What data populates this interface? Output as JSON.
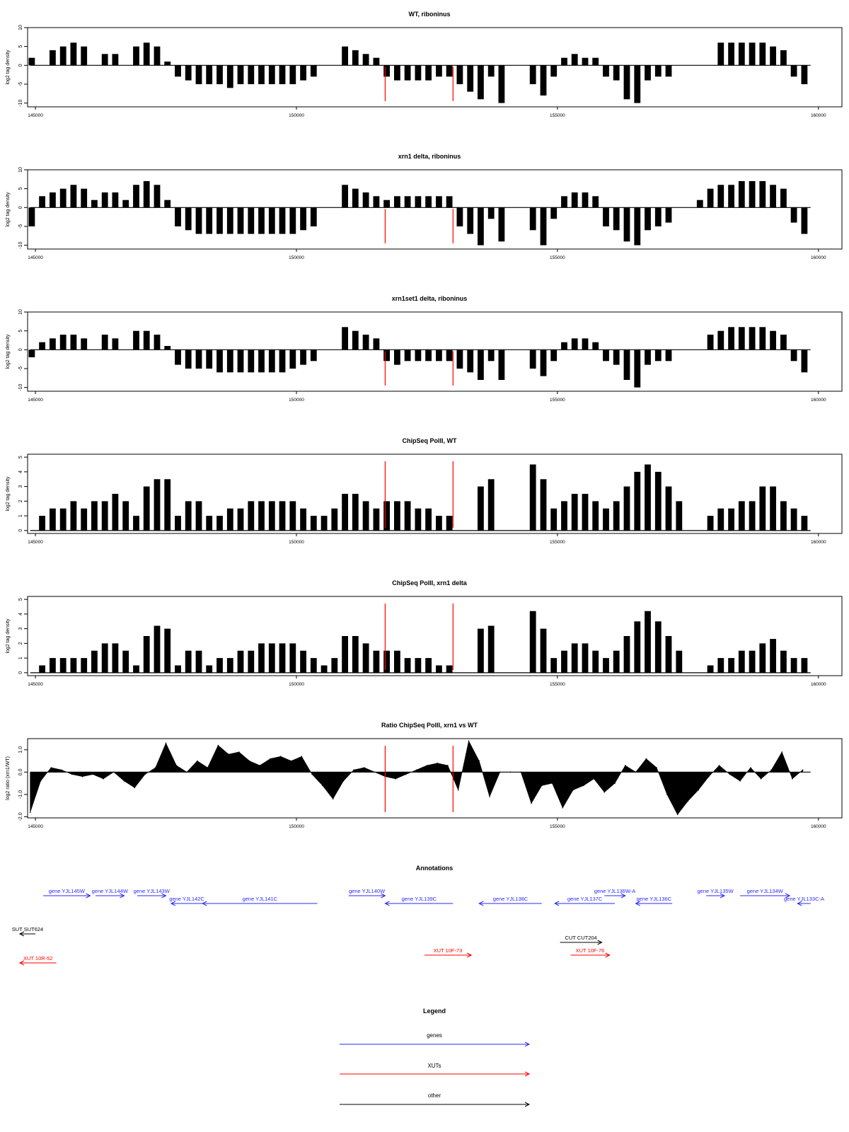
{
  "colors": {
    "gene": "#2a2aff",
    "xut": "#ff0000",
    "other": "#000000",
    "marker": "#ff0000",
    "bars": "#000000"
  },
  "x_axis": {
    "ticks": [
      145000,
      150000,
      155000,
      160000
    ],
    "tick_labels": [
      "145000",
      "150000",
      "155000",
      "160000"
    ],
    "range": [
      144850,
      160450
    ]
  },
  "markers": [
    151700,
    153000
  ],
  "panels": [
    {
      "title": "WT, riboninus",
      "ylabel": "log2 tag density",
      "yticks": [
        -10,
        -5,
        0,
        5,
        10
      ],
      "ytick_labels": [
        "-10",
        "-5",
        "0",
        "5",
        "10"
      ],
      "ylim": [
        -11,
        10
      ]
    },
    {
      "title": "xrn1 delta, riboninus",
      "ylabel": "log2 tag density",
      "yticks": [
        -10,
        -5,
        0,
        5,
        10
      ],
      "ytick_labels": [
        "-10",
        "-5",
        "0",
        "5",
        "10"
      ],
      "ylim": [
        -11,
        10
      ]
    },
    {
      "title": "xrn1set1 delta, riboninus",
      "ylabel": "log2 tag density",
      "yticks": [
        -10,
        -5,
        0,
        5,
        10
      ],
      "ytick_labels": [
        "-10",
        "-5",
        "0",
        "5",
        "10"
      ],
      "ylim": [
        -11,
        10
      ]
    },
    {
      "title": "ChipSeq PolII, WT",
      "ylabel": "log2 tag density",
      "yticks": [
        0,
        1,
        2,
        3,
        4,
        5
      ],
      "ytick_labels": [
        "0",
        "1",
        "2",
        "3",
        "4",
        "5"
      ],
      "ylim": [
        -0.2,
        5.2
      ]
    },
    {
      "title": "ChipSeq PolII, xrn1 delta",
      "ylabel": "log2 tag density",
      "yticks": [
        0,
        1,
        2,
        3,
        4,
        5
      ],
      "ytick_labels": [
        "0",
        "1",
        "2",
        "3",
        "4",
        "5"
      ],
      "ylim": [
        -0.2,
        5.2
      ]
    },
    {
      "title": "Ratio ChipSeq PolII, xrn1 vs WT",
      "ylabel": "log2 ratio (xrn1/WT)",
      "yticks": [
        -2.0,
        -1.0,
        0.0,
        1.0
      ],
      "ytick_labels": [
        "-2.0",
        "-1.0",
        "0.0",
        "1.0"
      ],
      "ylim": [
        -2.05,
        1.5
      ]
    }
  ],
  "annotations": {
    "title": "Annotations",
    "genes": [
      {
        "label": "gene YJL145W",
        "start": 145150,
        "end": 146050,
        "dir": "right"
      },
      {
        "label": "gene YJL144W",
        "start": 146150,
        "end": 146700,
        "dir": "right"
      },
      {
        "label": "gene YJL143W",
        "start": 146950,
        "end": 147500,
        "dir": "right"
      },
      {
        "label": "gene YJL142C",
        "start": 147600,
        "end": 148200,
        "dir": "left"
      },
      {
        "label": "gene YJL141C",
        "start": 148200,
        "end": 150400,
        "dir": "left"
      },
      {
        "label": "gene YJL140W",
        "start": 151000,
        "end": 151700,
        "dir": "right"
      },
      {
        "label": "gene YJL139C",
        "start": 151700,
        "end": 153000,
        "dir": "left"
      },
      {
        "label": "gene YJL138C",
        "start": 153500,
        "end": 154700,
        "dir": "left"
      },
      {
        "label": "gene YJL137C",
        "start": 154950,
        "end": 156100,
        "dir": "left"
      },
      {
        "label": "gene YJL136W-A",
        "start": 155900,
        "end": 156300,
        "dir": "right"
      },
      {
        "label": "gene YJL136C",
        "start": 156500,
        "end": 157200,
        "dir": "left"
      },
      {
        "label": "gene YJL135W",
        "start": 157850,
        "end": 158200,
        "dir": "right"
      },
      {
        "label": "gene YJL134W",
        "start": 158500,
        "end": 159450,
        "dir": "right"
      },
      {
        "label": "gene YJL133C-A",
        "start": 159600,
        "end": 159850,
        "dir": "left"
      }
    ],
    "others": [
      {
        "label": "SUT SUT624",
        "start": 144700,
        "end": 145000,
        "dir": "left"
      },
      {
        "label": "CUT CUT204",
        "start": 155050,
        "end": 155850,
        "dir": "right"
      }
    ],
    "xuts": [
      {
        "label": "XUT 10R-52",
        "start": 144700,
        "end": 145400,
        "dir": "left"
      },
      {
        "label": "XUT 10F-73",
        "start": 152450,
        "end": 153350,
        "dir": "right"
      },
      {
        "label": "XUT 10F-76",
        "start": 155250,
        "end": 156000,
        "dir": "right"
      }
    ]
  },
  "legend": {
    "title": "Legend",
    "items": [
      {
        "label": "genes",
        "color": "#2a2aff"
      },
      {
        "label": "XUTs",
        "color": "#ff0000"
      },
      {
        "label": "other",
        "color": "#000000"
      }
    ]
  },
  "chart_data": [
    {
      "type": "bar",
      "title": "WT, riboninus",
      "ylabel": "log2 tag density",
      "ylim": [
        -11,
        10
      ],
      "xlim": [
        144850,
        160450
      ],
      "x": [
        144900,
        145100,
        145300,
        145500,
        145700,
        145900,
        146100,
        146300,
        146500,
        146700,
        146900,
        147100,
        147300,
        147500,
        147700,
        147900,
        148100,
        148300,
        148500,
        148700,
        148900,
        149100,
        149300,
        149500,
        149700,
        149900,
        150100,
        150300,
        150500,
        150700,
        150900,
        151100,
        151300,
        151500,
        151700,
        151900,
        152100,
        152300,
        152500,
        152700,
        152900,
        153100,
        153300,
        153500,
        153700,
        153900,
        154100,
        154300,
        154500,
        154700,
        154900,
        155100,
        155300,
        155500,
        155700,
        155900,
        156100,
        156300,
        156500,
        156700,
        156900,
        157100,
        157300,
        157500,
        157700,
        157900,
        158100,
        158300,
        158500,
        158700,
        158900,
        159100,
        159300,
        159500,
        159700
      ],
      "values": [
        2,
        0,
        4,
        5,
        6,
        5,
        0,
        3,
        3,
        0,
        5,
        6,
        5,
        1,
        -3,
        -4,
        -5,
        -5,
        -5,
        -6,
        -5,
        -5,
        -5,
        -5,
        -5,
        -5,
        -4,
        -3,
        0,
        0,
        5,
        4,
        3,
        2,
        -3,
        -4,
        -4,
        -4,
        -4,
        -3,
        -3,
        -5,
        -7,
        -9,
        -3,
        -10,
        0,
        0,
        -5,
        -8,
        -3,
        2,
        3,
        2,
        2,
        -3,
        -4,
        -9,
        -10,
        -4,
        -3,
        -3,
        0,
        0,
        0,
        0,
        6,
        6,
        6,
        6,
        6,
        5,
        4,
        -3,
        -5
      ]
    },
    {
      "type": "bar",
      "title": "xrn1 delta, riboninus",
      "ylabel": "log2 tag density",
      "ylim": [
        -11,
        10
      ],
      "xlim": [
        144850,
        160450
      ],
      "x": [
        144900,
        145100,
        145300,
        145500,
        145700,
        145900,
        146100,
        146300,
        146500,
        146700,
        146900,
        147100,
        147300,
        147500,
        147700,
        147900,
        148100,
        148300,
        148500,
        148700,
        148900,
        149100,
        149300,
        149500,
        149700,
        149900,
        150100,
        150300,
        150500,
        150700,
        150900,
        151100,
        151300,
        151500,
        151700,
        151900,
        152100,
        152300,
        152500,
        152700,
        152900,
        153100,
        153300,
        153500,
        153700,
        153900,
        154100,
        154300,
        154500,
        154700,
        154900,
        155100,
        155300,
        155500,
        155700,
        155900,
        156100,
        156300,
        156500,
        156700,
        156900,
        157100,
        157300,
        157500,
        157700,
        157900,
        158100,
        158300,
        158500,
        158700,
        158900,
        159100,
        159300,
        159500,
        159700
      ],
      "values": [
        -5,
        3,
        4,
        5,
        6,
        5,
        2,
        4,
        4,
        2,
        6,
        7,
        6,
        2,
        -5,
        -6,
        -7,
        -7,
        -7,
        -7,
        -7,
        -7,
        -7,
        -7,
        -7,
        -7,
        -6,
        -5,
        0,
        0,
        6,
        5,
        4,
        3,
        2,
        3,
        3,
        3,
        3,
        3,
        3,
        -5,
        -7,
        -10,
        -3,
        -9,
        0,
        0,
        -6,
        -10,
        -3,
        3,
        4,
        4,
        3,
        -5,
        -6,
        -9,
        -10,
        -6,
        -5,
        -4,
        0,
        0,
        2,
        5,
        6,
        6,
        7,
        7,
        7,
        6,
        5,
        -4,
        -7
      ]
    },
    {
      "type": "bar",
      "title": "xrn1set1 delta, riboninus",
      "ylabel": "log2 tag density",
      "ylim": [
        -11,
        10
      ],
      "xlim": [
        144850,
        160450
      ],
      "x": [
        144900,
        145100,
        145300,
        145500,
        145700,
        145900,
        146100,
        146300,
        146500,
        146700,
        146900,
        147100,
        147300,
        147500,
        147700,
        147900,
        148100,
        148300,
        148500,
        148700,
        148900,
        149100,
        149300,
        149500,
        149700,
        149900,
        150100,
        150300,
        150500,
        150700,
        150900,
        151100,
        151300,
        151500,
        151700,
        151900,
        152100,
        152300,
        152500,
        152700,
        152900,
        153100,
        153300,
        153500,
        153700,
        153900,
        154100,
        154300,
        154500,
        154700,
        154900,
        155100,
        155300,
        155500,
        155700,
        155900,
        156100,
        156300,
        156500,
        156700,
        156900,
        157100,
        157300,
        157500,
        157700,
        157900,
        158100,
        158300,
        158500,
        158700,
        158900,
        159100,
        159300,
        159500,
        159700
      ],
      "values": [
        -2,
        2,
        3,
        4,
        4,
        3,
        0,
        4,
        3,
        0,
        5,
        5,
        4,
        1,
        -4,
        -5,
        -5,
        -5,
        -6,
        -6,
        -6,
        -6,
        -6,
        -6,
        -6,
        -5,
        -4,
        -3,
        0,
        0,
        6,
        5,
        4,
        3,
        -3,
        -4,
        -3,
        -3,
        -3,
        -3,
        -3,
        -5,
        -6,
        -8,
        -3,
        -8,
        0,
        0,
        -5,
        -7,
        -3,
        2,
        3,
        3,
        2,
        -3,
        -4,
        -8,
        -10,
        -4,
        -3,
        -3,
        0,
        0,
        0,
        4,
        5,
        6,
        6,
        6,
        6,
        5,
        4,
        -3,
        -6
      ]
    },
    {
      "type": "bar",
      "title": "ChipSeq PolII, WT",
      "ylabel": "log2 tag density",
      "ylim": [
        -0.2,
        5.2
      ],
      "xlim": [
        144850,
        160450
      ],
      "x": [
        145100,
        145300,
        145500,
        145700,
        145900,
        146100,
        146300,
        146500,
        146700,
        146900,
        147100,
        147300,
        147500,
        147700,
        147900,
        148100,
        148300,
        148500,
        148700,
        148900,
        149100,
        149300,
        149500,
        149700,
        149900,
        150100,
        150300,
        150500,
        150700,
        150900,
        151100,
        151300,
        151500,
        151700,
        151900,
        152100,
        152300,
        152500,
        152700,
        152900,
        153100,
        153300,
        153500,
        153700,
        153900,
        154100,
        154300,
        154500,
        154700,
        154900,
        155100,
        155300,
        155500,
        155700,
        155900,
        156100,
        156300,
        156500,
        156700,
        156900,
        157100,
        157300,
        157500,
        157700,
        157900,
        158100,
        158300,
        158500,
        158700,
        158900,
        159100,
        159300,
        159500,
        159700
      ],
      "values": [
        1,
        1.5,
        1.5,
        2,
        1.5,
        2,
        2,
        2.5,
        2,
        1,
        3,
        3.5,
        3.5,
        1,
        2,
        2,
        1,
        1,
        1.5,
        1.5,
        2,
        2,
        2,
        2,
        2,
        1.5,
        1,
        1,
        1.5,
        2.5,
        2.5,
        2,
        1.5,
        2,
        2,
        2,
        1.5,
        1.5,
        1,
        1,
        0,
        0,
        3,
        3.5,
        0,
        0,
        0,
        4.5,
        3.5,
        1.5,
        2,
        2.5,
        2.5,
        2,
        1.5,
        2,
        3,
        4,
        4.5,
        4,
        3,
        2,
        0,
        0,
        1,
        1.5,
        1.5,
        2,
        2,
        3,
        3,
        2,
        1.5,
        1
      ]
    },
    {
      "type": "bar",
      "title": "ChipSeq PolII, xrn1 delta",
      "ylabel": "log2 tag density",
      "ylim": [
        -0.2,
        5.2
      ],
      "xlim": [
        144850,
        160450
      ],
      "x": [
        145100,
        145300,
        145500,
        145700,
        145900,
        146100,
        146300,
        146500,
        146700,
        146900,
        147100,
        147300,
        147500,
        147700,
        147900,
        148100,
        148300,
        148500,
        148700,
        148900,
        149100,
        149300,
        149500,
        149700,
        149900,
        150100,
        150300,
        150500,
        150700,
        150900,
        151100,
        151300,
        151500,
        151700,
        151900,
        152100,
        152300,
        152500,
        152700,
        152900,
        153100,
        153300,
        153500,
        153700,
        153900,
        154100,
        154300,
        154500,
        154700,
        154900,
        155100,
        155300,
        155500,
        155700,
        155900,
        156100,
        156300,
        156500,
        156700,
        156900,
        157100,
        157300,
        157500,
        157700,
        157900,
        158100,
        158300,
        158500,
        158700,
        158900,
        159100,
        159300,
        159500,
        159700
      ],
      "values": [
        0.5,
        1,
        1,
        1,
        1,
        1.5,
        2,
        2,
        1.5,
        0.5,
        2.5,
        3.2,
        3,
        0.5,
        1.5,
        1.5,
        0.5,
        1,
        1,
        1.5,
        1.5,
        2,
        2,
        2,
        2,
        1.5,
        1,
        0.5,
        1,
        2.5,
        2.5,
        2,
        1.5,
        1.5,
        1.5,
        1,
        1,
        1,
        0.5,
        0.5,
        0,
        0,
        3,
        3.2,
        0,
        0,
        0,
        4.2,
        3,
        1,
        1.5,
        2,
        2,
        1.5,
        1,
        1.5,
        2.5,
        3.5,
        4.2,
        3.5,
        2.5,
        1.5,
        0,
        0,
        0.5,
        1,
        1,
        1.5,
        1.5,
        2,
        2.3,
        1.5,
        1,
        1
      ]
    },
    {
      "type": "area",
      "title": "Ratio ChipSeq PolII, xrn1 vs WT",
      "ylabel": "log2 ratio (xrn1/WT)",
      "ylim": [
        -2.05,
        1.5
      ],
      "xlim": [
        144850,
        160450
      ],
      "x": [
        144900,
        145100,
        145300,
        145500,
        145700,
        145900,
        146100,
        146300,
        146500,
        146700,
        146900,
        147100,
        147300,
        147500,
        147700,
        147900,
        148100,
        148300,
        148500,
        148700,
        148900,
        149100,
        149300,
        149500,
        149700,
        149900,
        150100,
        150300,
        150500,
        150700,
        150900,
        151100,
        151300,
        151500,
        151700,
        151900,
        152100,
        152300,
        152500,
        152700,
        152900,
        153100,
        153300,
        153500,
        153700,
        153900,
        154100,
        154300,
        154500,
        154700,
        154900,
        155100,
        155300,
        155500,
        155700,
        155900,
        156100,
        156300,
        156500,
        156700,
        156900,
        157100,
        157300,
        157500,
        157700,
        157900,
        158100,
        158300,
        158500,
        158700,
        158900,
        159100,
        159300,
        159500,
        159700
      ],
      "values": [
        -1.8,
        -0.4,
        0.2,
        0.1,
        -0.1,
        -0.2,
        -0.1,
        -0.3,
        0.0,
        -0.4,
        -0.7,
        -0.1,
        0.2,
        1.3,
        0.3,
        0.0,
        0.5,
        0.2,
        1.2,
        0.8,
        0.9,
        0.5,
        0.3,
        0.6,
        0.7,
        0.5,
        0.7,
        -0.1,
        -0.6,
        -1.2,
        -0.4,
        0.1,
        0.2,
        0.0,
        -0.2,
        -0.3,
        -0.1,
        0.1,
        0.3,
        0.4,
        0.3,
        -0.8,
        1.4,
        0.5,
        -1.1,
        0.0,
        0.0,
        0.0,
        -1.4,
        -0.6,
        -0.5,
        -1.6,
        -0.8,
        -0.6,
        -0.3,
        -0.9,
        -0.5,
        0.3,
        0.0,
        0.6,
        0.2,
        -1.0,
        -1.9,
        -1.3,
        -0.8,
        -0.2,
        0.3,
        -0.1,
        -0.4,
        0.2,
        -0.3,
        0.1,
        0.9,
        -0.3,
        0.1
      ]
    }
  ]
}
